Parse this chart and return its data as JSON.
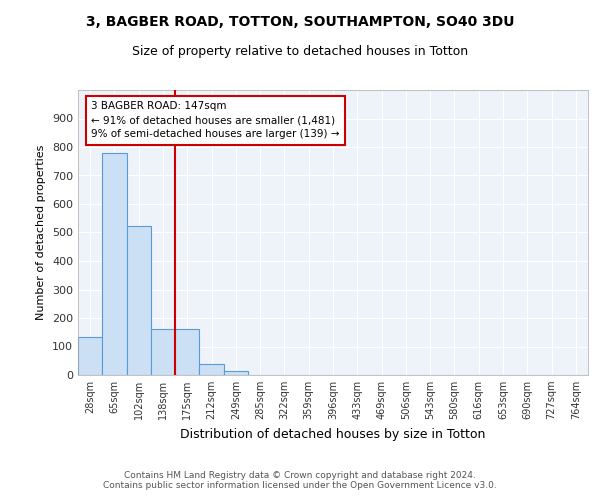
{
  "title1": "3, BAGBER ROAD, TOTTON, SOUTHAMPTON, SO40 3DU",
  "title2": "Size of property relative to detached houses in Totton",
  "xlabel": "Distribution of detached houses by size in Totton",
  "ylabel": "Number of detached properties",
  "bin_labels": [
    "28sqm",
    "65sqm",
    "102sqm",
    "138sqm",
    "175sqm",
    "212sqm",
    "249sqm",
    "285sqm",
    "322sqm",
    "359sqm",
    "396sqm",
    "433sqm",
    "469sqm",
    "506sqm",
    "543sqm",
    "580sqm",
    "616sqm",
    "653sqm",
    "690sqm",
    "727sqm",
    "764sqm"
  ],
  "bar_values": [
    133,
    778,
    522,
    160,
    160,
    38,
    13,
    0,
    0,
    0,
    0,
    0,
    0,
    0,
    0,
    0,
    0,
    0,
    0,
    0,
    0
  ],
  "bar_color": "#cce0f5",
  "bar_edge_color": "#5b9bd5",
  "vline_x": 3.5,
  "vline_color": "#cc0000",
  "annotation_line1": "3 BAGBER ROAD: 147sqm",
  "annotation_line2": "← 91% of detached houses are smaller (1,481)",
  "annotation_line3": "9% of semi-detached houses are larger (139) →",
  "annotation_box_color": "#cc0000",
  "annotation_fill": "white",
  "ylim": [
    0,
    1000
  ],
  "yticks": [
    0,
    100,
    200,
    300,
    400,
    500,
    600,
    700,
    800,
    900,
    1000
  ],
  "footer": "Contains HM Land Registry data © Crown copyright and database right 2024.\nContains public sector information licensed under the Open Government Licence v3.0.",
  "bg_color": "#eef3fa",
  "grid_color": "#ffffff"
}
